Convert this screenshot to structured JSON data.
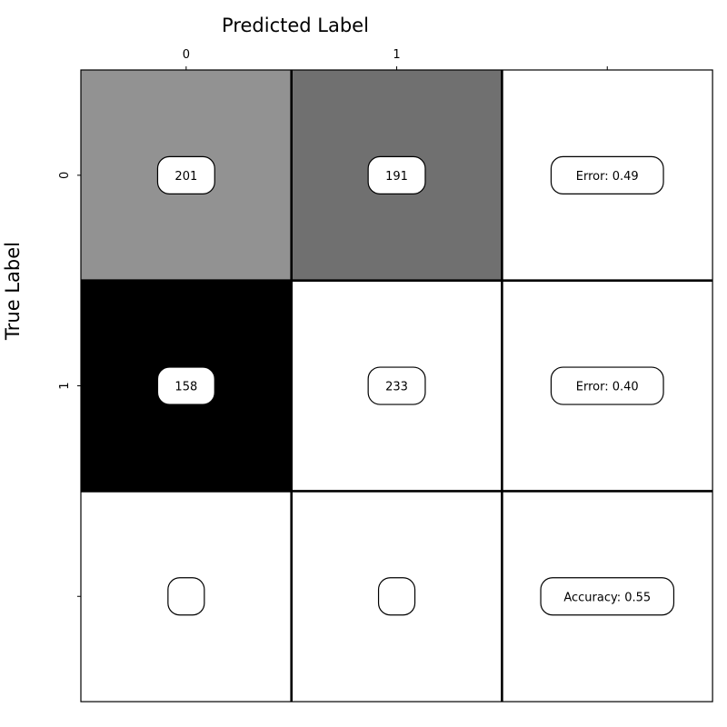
{
  "chart_data": {
    "type": "heatmap",
    "title": "",
    "xlabel": "Predicted Label",
    "ylabel": "True Label",
    "x_tick_labels": [
      "0",
      "1",
      ""
    ],
    "y_tick_labels": [
      "0",
      "1",
      ""
    ],
    "x_axis_position": "top",
    "colormap": "greys",
    "color_scale_range": [
      158,
      233
    ],
    "matrix": [
      [
        201,
        191
      ],
      [
        158,
        233
      ]
    ],
    "rows": [
      {
        "cells": [
          {
            "label": "201",
            "value": 201
          },
          {
            "label": "191",
            "value": 191
          },
          {
            "label": "Error: 0.49"
          }
        ]
      },
      {
        "cells": [
          {
            "label": "158",
            "value": 158
          },
          {
            "label": "233",
            "value": 233
          },
          {
            "label": "Error: 0.40"
          }
        ]
      },
      {
        "cells": [
          {
            "label": ""
          },
          {
            "label": ""
          },
          {
            "label": "Accuracy: 0.55"
          }
        ]
      }
    ],
    "grid": true
  }
}
